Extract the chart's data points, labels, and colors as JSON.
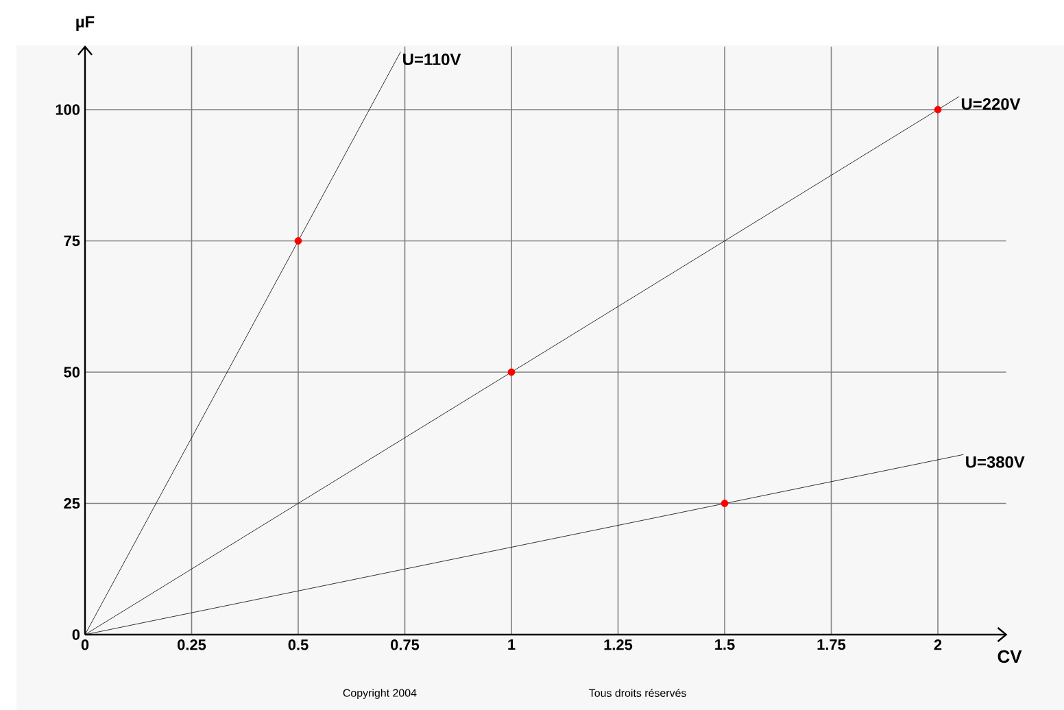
{
  "chart_data": {
    "type": "line",
    "xlabel": "CV",
    "ylabel": "µF",
    "xlim": [
      0,
      2.16
    ],
    "ylim": [
      0,
      112
    ],
    "xticks": [
      0,
      0.25,
      0.5,
      0.75,
      1,
      1.25,
      1.5,
      1.75,
      2
    ],
    "yticks": [
      0,
      25,
      50,
      75,
      100
    ],
    "grid": true,
    "marker": "none",
    "series": [
      {
        "name": "U=110V",
        "color": "#000000",
        "x": [
          0,
          0.74
        ],
        "values": [
          0,
          111
        ]
      },
      {
        "name": "U=220V",
        "color": "#000000",
        "x": [
          0,
          2.05
        ],
        "values": [
          0,
          102.5
        ]
      },
      {
        "name": "U=380V",
        "color": "#000000",
        "x": [
          0,
          2.06
        ],
        "values": [
          0,
          34.3
        ]
      },
      {
        "type": "scatter",
        "color": "#ff0000",
        "marker": "circle",
        "x": [
          0.5,
          1,
          1.5,
          2
        ],
        "values": [
          75,
          50,
          25,
          100
        ]
      }
    ],
    "annotations": [
      "Copyright 2004",
      "Tous droits réservés"
    ]
  }
}
